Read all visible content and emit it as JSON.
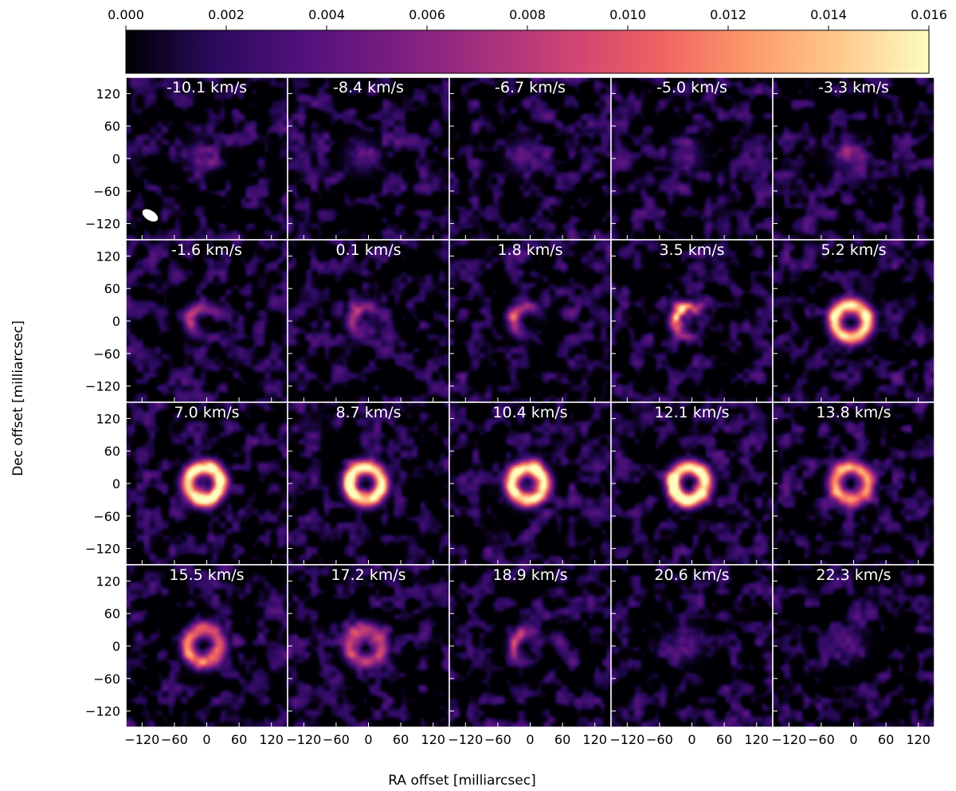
{
  "chart_data": {
    "type": "heatmap",
    "layout": {
      "rows": 4,
      "cols": 5
    },
    "colorbar": {
      "colormap": "magma",
      "range": [
        0.0,
        0.016
      ],
      "ticks": [
        "0.000",
        "0.002",
        "0.004",
        "0.006",
        "0.008",
        "0.010",
        "0.012",
        "0.014",
        "0.016"
      ],
      "stops": [
        "#000004",
        "#2a0a5e",
        "#51127c",
        "#7a1d80",
        "#a3307e",
        "#cf4472",
        "#ef6361",
        "#fd9a6a",
        "#fec98d",
        "#fcfdbf"
      ]
    },
    "xlabel": "RA offset [milliarcsec]",
    "ylabel": "Dec offset [milliarcsec]",
    "xlim": [
      -150,
      150
    ],
    "ylim": [
      -150,
      150
    ],
    "xticks": [
      -120,
      -60,
      0,
      60,
      120
    ],
    "yticks": [
      -120,
      -60,
      0,
      60,
      120
    ],
    "xtick_labels": [
      "−120",
      "−60",
      "0",
      "60",
      "120"
    ],
    "ytick_labels": [
      "−120",
      "−60",
      "0",
      "60",
      "120"
    ],
    "beam": {
      "panel": 0,
      "x": -105,
      "y": -105,
      "major": 16,
      "minor": 9,
      "pa_deg": 32,
      "color": "#ffffff"
    },
    "panels": [
      {
        "label": "-10.1 km/s",
        "peak": 0.0045,
        "morph": "blob"
      },
      {
        "label": "-8.4 km/s",
        "peak": 0.0045,
        "morph": "blob"
      },
      {
        "label": "-6.7 km/s",
        "peak": 0.005,
        "morph": "blob"
      },
      {
        "label": "-5.0 km/s",
        "peak": 0.005,
        "morph": "blob"
      },
      {
        "label": "-3.3 km/s",
        "peak": 0.0045,
        "morph": "blob"
      },
      {
        "label": "-1.6 km/s",
        "peak": 0.0075,
        "morph": "arc"
      },
      {
        "label": "0.1 km/s",
        "peak": 0.0075,
        "morph": "arc"
      },
      {
        "label": "1.8 km/s",
        "peak": 0.009,
        "morph": "arc"
      },
      {
        "label": "3.5 km/s",
        "peak": 0.013,
        "morph": "arc"
      },
      {
        "label": "5.2 km/s",
        "peak": 0.015,
        "morph": "ring"
      },
      {
        "label": "7.0 km/s",
        "peak": 0.016,
        "morph": "ring"
      },
      {
        "label": "8.7 km/s",
        "peak": 0.016,
        "morph": "ring"
      },
      {
        "label": "10.4 km/s",
        "peak": 0.016,
        "morph": "ring"
      },
      {
        "label": "12.1 km/s",
        "peak": 0.016,
        "morph": "ring"
      },
      {
        "label": "13.8 km/s",
        "peak": 0.012,
        "morph": "ring"
      },
      {
        "label": "15.5 km/s",
        "peak": 0.01,
        "morph": "ring"
      },
      {
        "label": "17.2 km/s",
        "peak": 0.008,
        "morph": "ring"
      },
      {
        "label": "18.9 km/s",
        "peak": 0.006,
        "morph": "arc"
      },
      {
        "label": "20.6 km/s",
        "peak": 0.005,
        "morph": "blob"
      },
      {
        "label": "22.3 km/s",
        "peak": 0.0045,
        "morph": "blob"
      }
    ]
  }
}
